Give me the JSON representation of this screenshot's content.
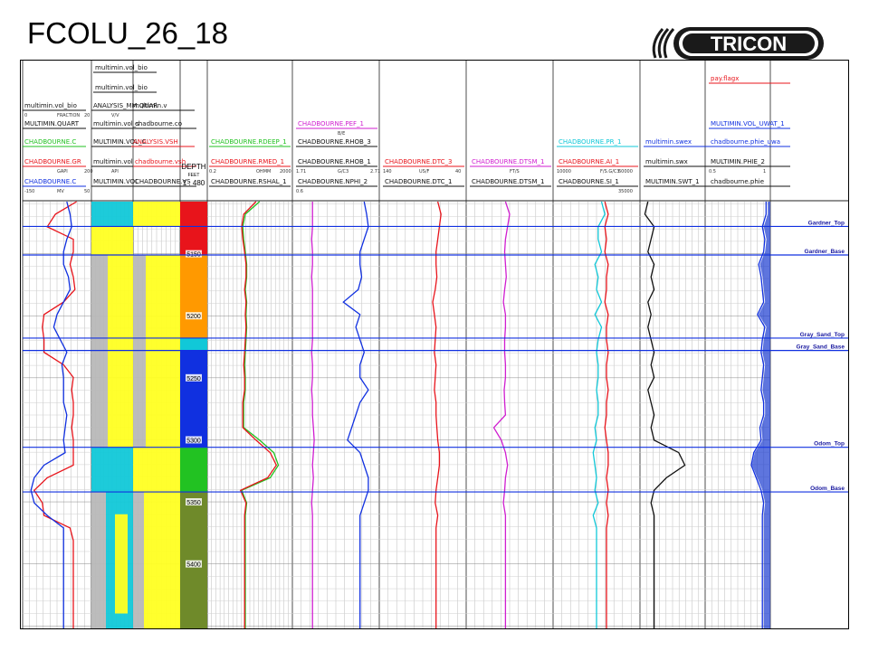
{
  "title": "FCOLU_26_18",
  "logo": {
    "text": "TRICON"
  },
  "depth_track": {
    "title": "DEPTH",
    "unit": "FEET",
    "scale": "1 : 480",
    "ticks": [
      "5150",
      "5200",
      "5250",
      "5300",
      "5350",
      "5400"
    ]
  },
  "colors": {
    "red": "#e8141b",
    "blue": "#1030e0",
    "green": "#22c222",
    "black": "#111111",
    "cyan": "#11c8d8",
    "magenta": "#d01ed0",
    "yellow": "#ffff22",
    "gray": "#b8b8b8",
    "orange": "#ff9900",
    "purple": "#9a22e0",
    "teal": "#18a8b8",
    "olive": "#6f8a2a",
    "navy": "#1a1aff",
    "pink": "#ff66cc"
  },
  "headers": [
    {
      "name": "multimin.vol_bio",
      "color": "#111111"
    },
    {
      "name": "multimin.vol_mus",
      "color": "#111111"
    },
    {
      "name": "ANALYSIS_MM.QUAR",
      "color": "#111111"
    },
    {
      "name": "multimin.v",
      "color": "#111111"
    },
    {
      "name": "MULTIMIN.VOL_WET",
      "color": "#22c222"
    },
    {
      "name": "MULTIMIN.QUART",
      "color": "#111111"
    },
    {
      "name": "multimin.vol_s",
      "color": "#111111"
    },
    {
      "name": "chadbourne.co",
      "color": "#111111"
    },
    {
      "name": "CHADBOURNE.C",
      "color": "#22c222"
    },
    {
      "name": "MULTIMIN.VOL_C",
      "color": "#111111"
    },
    {
      "name": "ANALYSIS.VSH",
      "color": "#e8141b"
    },
    {
      "name": "CHADBOURNE.GR",
      "color": "#e8141b"
    },
    {
      "name": "multimin.vol",
      "color": "#111111"
    },
    {
      "name": "chadbourne.vsh",
      "color": "#e8141b"
    },
    {
      "name": "CHADBOURNE.C",
      "color": "#1030e0"
    },
    {
      "name": "MULTIMIN.VOL",
      "color": "#111111"
    },
    {
      "name": "CHADBOURNE.VS",
      "color": "#111111"
    },
    {
      "name": "CHADBOURNE.RDEEP_1",
      "color": "#22c222"
    },
    {
      "name": "CHADBOURNE.RMED_1",
      "color": "#e8141b"
    },
    {
      "name": "CHADBOURNE.RSHAL_1",
      "color": "#111111"
    },
    {
      "name": "CHADBOURNE.PEF_1",
      "color": "#d01ed0"
    },
    {
      "name": "CHADBOURNE.RHOB_3",
      "color": "#111111"
    },
    {
      "name": "CHADBOURNE.RHOB_1",
      "color": "#111111"
    },
    {
      "name": "CHADBOURNE.NPHI_2",
      "color": "#111111"
    },
    {
      "name": "CHADBOURNE.DTC_3",
      "color": "#e8141b"
    },
    {
      "name": "CHADBOURNE.DTC_1",
      "color": "#111111"
    },
    {
      "name": "CHADBOURNE.DTSM_1",
      "color": "#d01ed0"
    },
    {
      "name": "CHADBOURNE.DTSM_1",
      "color": "#111111"
    },
    {
      "name": "CHADBOURNE.PR_1",
      "color": "#11c8d8"
    },
    {
      "name": "CHADBOURNE.AI_1",
      "color": "#e8141b"
    },
    {
      "name": "CHADBOURNE.SI_1",
      "color": "#111111"
    },
    {
      "name": "multimin.swex",
      "color": "#1030e0"
    },
    {
      "name": "multimin.swx",
      "color": "#111111"
    },
    {
      "name": "MULTIMIN.SWT_1",
      "color": "#111111"
    },
    {
      "name": "pay.flagx",
      "color": "#e8141b"
    },
    {
      "name": "MULTIMIN.VOL_UWAT_1",
      "color": "#1030e0"
    },
    {
      "name": "chadbourne.phie_uwa",
      "color": "#1030e0"
    },
    {
      "name": "MULTIMIN.PHIE_2",
      "color": "#111111"
    },
    {
      "name": "chadbourne.phie",
      "color": "#111111"
    }
  ],
  "scale_labels": [
    "FRACTION",
    "V/V",
    "GAPI",
    "API",
    "MV",
    "OHMM",
    "B/E",
    "G/C3",
    "US/F",
    "FT/S",
    "F/S.G/C3"
  ],
  "scale_values": [
    "0",
    "20",
    "200",
    "-150",
    "50",
    "0.2",
    "2000",
    "1.71",
    "2.71",
    "0.6",
    "140",
    "40",
    "10000",
    "60000",
    "35000",
    "0.5",
    "1"
  ],
  "chart_data": {
    "type": "line",
    "title": "FCOLU_26_18",
    "ylabel": "DEPTH",
    "ylim": [
      5108,
      5452
    ],
    "y_ticks": [
      5150,
      5200,
      5250,
      5300,
      5350,
      5400
    ],
    "formations": [
      {
        "name": "Gardner_Top",
        "depth": 5128
      },
      {
        "name": "Gardner_Base",
        "depth": 5151
      },
      {
        "name": "Gray_Sand_Top",
        "depth": 5218
      },
      {
        "name": "Gray_Sand_Base",
        "depth": 5228
      },
      {
        "name": "Odom_Top",
        "depth": 5306
      },
      {
        "name": "Odom_Base",
        "depth": 5342
      }
    ],
    "zones": [
      {
        "top": 5108,
        "base": 5151,
        "color": "#e8141b"
      },
      {
        "top": 5151,
        "base": 5218,
        "color": "#ff9900"
      },
      {
        "top": 5218,
        "base": 5228,
        "color": "#11c8d8"
      },
      {
        "top": 5228,
        "base": 5306,
        "color": "#1030e0"
      },
      {
        "top": 5306,
        "base": 5342,
        "color": "#22c222"
      },
      {
        "top": 5342,
        "base": 5452,
        "color": "#6f8a2a"
      }
    ],
    "series": [
      {
        "name": "CHADBOURNE.GR",
        "color": "#e8141b",
        "xlim": [
          0,
          200
        ],
        "values": [
          160,
          95,
          70,
          150,
          150,
          140,
          150,
          155,
          120,
          60,
          55,
          60,
          60,
          120,
          150,
          145,
          150,
          150,
          145,
          150,
          150,
          150,
          70,
          30,
          55,
          60,
          140,
          150,
          150,
          150,
          150,
          150,
          150,
          150,
          150
        ]
      },
      {
        "name": "CHADBOURNE.SP",
        "color": "#1030e0",
        "xlim": [
          -150,
          50
        ],
        "values": [
          -20,
          -10,
          -5,
          -20,
          -30,
          -30,
          -15,
          -10,
          -30,
          -50,
          -60,
          -40,
          -20,
          -35,
          -30,
          -30,
          -30,
          -20,
          -25,
          -30,
          -25,
          -90,
          -120,
          -130,
          -120,
          -80,
          -30,
          -30,
          -30,
          -30,
          -30,
          -30,
          -30,
          -30,
          -30
        ]
      },
      {
        "name": "CHADBOURNE.RDEEP_1",
        "color": "#22c222",
        "xlim": [
          0.2,
          2000
        ],
        "values": [
          60,
          12,
          9,
          10,
          12,
          14,
          14,
          12,
          14,
          13,
          14,
          13,
          12,
          11,
          12,
          12,
          10,
          10,
          10,
          60,
          300,
          500,
          200,
          8,
          14,
          12,
          12,
          12,
          12,
          12,
          12,
          12,
          12,
          12,
          12
        ]
      },
      {
        "name": "CHADBOURNE.RMED_1",
        "color": "#e8141b",
        "xlim": [
          0.2,
          2000
        ],
        "values": [
          40,
          10,
          8,
          9,
          11,
          13,
          13,
          11,
          13,
          12,
          13,
          12,
          11,
          10,
          11,
          11,
          9,
          9,
          9,
          40,
          200,
          400,
          150,
          7,
          13,
          11,
          11,
          11,
          11,
          11,
          11,
          11,
          11,
          11,
          11
        ]
      },
      {
        "name": "CHADBOURNE.RHOB_1",
        "color": "#1030e0",
        "xlim": [
          1.71,
          2.71
        ],
        "values": [
          2.55,
          2.58,
          2.6,
          2.55,
          2.5,
          2.5,
          2.52,
          2.48,
          2.3,
          2.5,
          2.45,
          2.5,
          2.55,
          2.5,
          2.5,
          2.6,
          2.5,
          2.45,
          2.4,
          2.35,
          2.5,
          2.55,
          2.6,
          2.6,
          2.55,
          2.5,
          2.5,
          2.5,
          2.5,
          2.5,
          2.5,
          2.5,
          2.5,
          2.5,
          2.5
        ]
      },
      {
        "name": "CHADBOURNE.PEF_1",
        "color": "#d01ed0",
        "xlim": [
          0,
          10
        ],
        "values": [
          2.2,
          2.2,
          2.2,
          2.1,
          2.2,
          2.2,
          2.1,
          2.2,
          2.2,
          2.2,
          2.2,
          2.2,
          2.1,
          2.2,
          2.2,
          2.1,
          2.2,
          2.2,
          2.3,
          2.4,
          2.3,
          2.2,
          2.3,
          2.2,
          2.1,
          2.2,
          2.2,
          2.2,
          2.2,
          2.2,
          2.2,
          2.2,
          2.2,
          2.2,
          2.2
        ]
      },
      {
        "name": "CHADBOURNE.DTC_3",
        "color": "#e8141b",
        "xlim": [
          140,
          40
        ],
        "values": [
          72,
          68,
          70,
          72,
          74,
          74,
          73,
          75,
          78,
          76,
          74,
          75,
          76,
          74,
          75,
          76,
          74,
          74,
          73,
          72,
          70,
          70,
          72,
          74,
          75,
          72,
          74,
          74,
          74,
          74,
          74,
          74,
          74,
          74,
          74
        ]
      },
      {
        "name": "CHADBOURNE.DTSM_1",
        "color": "#d01ed0",
        "xlim": [
          240,
          40
        ],
        "values": [
          150,
          140,
          145,
          150,
          152,
          150,
          148,
          152,
          155,
          150,
          150,
          152,
          152,
          150,
          150,
          153,
          152,
          150,
          178,
          160,
          150,
          145,
          150,
          152,
          155,
          150,
          150,
          150,
          150,
          150,
          150,
          150,
          150,
          150,
          150
        ]
      },
      {
        "name": "CHADBOURNE.PR_1",
        "color": "#11c8d8",
        "xlim": [
          0.5,
          0
        ],
        "values": [
          0.22,
          0.2,
          0.24,
          0.24,
          0.22,
          0.26,
          0.24,
          0.25,
          0.22,
          0.26,
          0.22,
          0.24,
          0.25,
          0.24,
          0.24,
          0.25,
          0.24,
          0.24,
          0.26,
          0.25,
          0.27,
          0.26,
          0.25,
          0.26,
          0.24,
          0.27,
          0.25,
          0.25,
          0.25,
          0.25,
          0.25,
          0.25,
          0.25,
          0.25,
          0.25
        ]
      },
      {
        "name": "CHADBOURNE.AI_1",
        "color": "#e8141b",
        "xlim": [
          10000,
          60000
        ],
        "values": [
          40000,
          42000,
          40000,
          41000,
          40000,
          42000,
          41000,
          41000,
          40000,
          42000,
          41000,
          41000,
          42000,
          41000,
          41000,
          42000,
          41000,
          41000,
          40000,
          41000,
          42000,
          42000,
          41000,
          42000,
          41000,
          42000,
          41000,
          41000,
          41000,
          41000,
          41000,
          41000,
          41000,
          41000,
          41000
        ]
      },
      {
        "name": "multimin.swx",
        "color": "#111111",
        "xlim": [
          1,
          0
        ],
        "values": [
          0.9,
          0.95,
          0.8,
          0.85,
          0.9,
          0.8,
          0.85,
          0.8,
          0.9,
          0.85,
          0.9,
          0.85,
          0.8,
          0.85,
          0.8,
          0.9,
          0.85,
          0.8,
          0.85,
          0.8,
          0.4,
          0.3,
          0.6,
          0.8,
          0.85,
          0.8,
          0.8,
          0.8,
          0.8,
          0.8,
          0.8,
          0.8,
          0.8,
          0.8,
          0.8
        ]
      },
      {
        "name": "chadbourne.phie",
        "color": "#1030e0",
        "xlim": [
          0.5,
          0
        ],
        "values": [
          0.02,
          0.02,
          0.05,
          0.03,
          0.04,
          0.08,
          0.06,
          0.05,
          0.04,
          0.09,
          0.03,
          0.05,
          0.06,
          0.04,
          0.05,
          0.06,
          0.04,
          0.04,
          0.07,
          0.06,
          0.12,
          0.14,
          0.1,
          0.06,
          0.04,
          0.05,
          0.05,
          0.05,
          0.05,
          0.05,
          0.05,
          0.05,
          0.05,
          0.05,
          0.05
        ]
      }
    ]
  }
}
